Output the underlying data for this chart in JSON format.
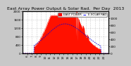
{
  "title": "East Array Power Output & Solar Rad.  Per Day  2013",
  "legend_entries": [
    "EAST POWER",
    "E-SOLAR RAD"
  ],
  "legend_colors": [
    "#ff0000",
    "#0000ff"
  ],
  "bg_color": "#c8c8c8",
  "plot_bg": "#ffffff",
  "grid_color": "#999999",
  "area_color": "#ff1100",
  "line_color": "#0000dd",
  "n_points": 288,
  "ylim_left": [
    0,
    2000
  ],
  "ylim_right": [
    0,
    1200
  ],
  "ytick_labels_left": [
    "0",
    "400",
    "800",
    "1200",
    "1600",
    "2000"
  ],
  "ytick_labels_right": [
    "0",
    "200",
    "400",
    "600",
    "800",
    "1000"
  ],
  "title_fontsize": 4.5,
  "tick_fontsize": 3.0,
  "legend_fontsize": 2.8
}
